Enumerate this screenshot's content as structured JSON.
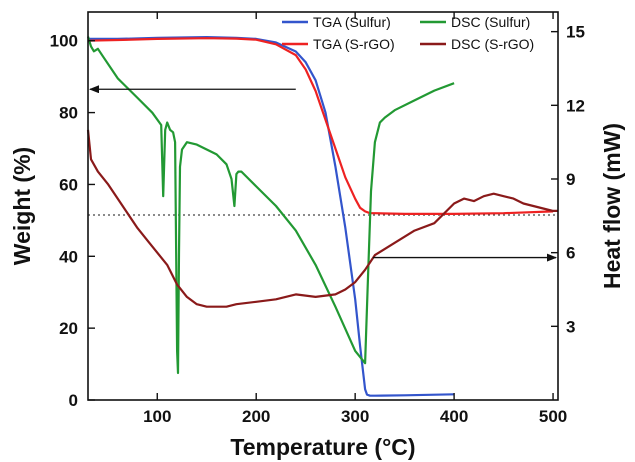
{
  "chart_data": {
    "type": "line",
    "xlabel": "Temperature (°C)",
    "ylabel_left": "Weight (%)",
    "ylabel_right": "Heat flow (mW)",
    "xlim": [
      30,
      505
    ],
    "ylim_left": [
      0,
      108
    ],
    "ylim_right": [
      0,
      15.8
    ],
    "x_ticks": [
      100,
      200,
      300,
      400,
      500
    ],
    "y_left_ticks": [
      0,
      20,
      40,
      60,
      80,
      100
    ],
    "y_right_ticks": [
      3,
      6,
      9,
      12,
      15
    ],
    "legend_position": "top-right",
    "reference_line": {
      "axis": "left",
      "y": 51.5,
      "style": "dotted"
    },
    "arrows": [
      {
        "points_to": "left-axis",
        "series": "TGA",
        "x_from": 240,
        "x_to": 30,
        "y_left": 86.5
      },
      {
        "points_to": "right-axis",
        "series": "DSC",
        "x_from": 318,
        "x_to": 505,
        "y_right": 5.8
      }
    ],
    "series": [
      {
        "name": "TGA (Sulfur)",
        "axis": "left",
        "color": "#3355cc",
        "x": [
          30,
          60,
          100,
          150,
          180,
          200,
          220,
          240,
          250,
          260,
          270,
          280,
          290,
          300,
          305,
          310,
          312,
          315,
          320,
          350,
          400
        ],
        "y": [
          100.5,
          100.5,
          100.8,
          101.0,
          100.8,
          100.5,
          99.5,
          97,
          94,
          89,
          80,
          65,
          48,
          28,
          15,
          3,
          1.5,
          1.2,
          1.2,
          1.3,
          1.6
        ]
      },
      {
        "name": "TGA (S-rGO)",
        "axis": "left",
        "color": "#ee2222",
        "x": [
          30,
          60,
          100,
          150,
          180,
          200,
          220,
          240,
          250,
          260,
          270,
          280,
          290,
          300,
          305,
          310,
          315,
          320,
          350,
          400,
          450,
          500
        ],
        "y": [
          100,
          100.2,
          100.5,
          100.7,
          100.6,
          100.3,
          99,
          96,
          92,
          86,
          78,
          70,
          62,
          56,
          53.5,
          52.5,
          52,
          52,
          51.8,
          51.8,
          52,
          52.5
        ]
      },
      {
        "name": "DSC (Sulfur)",
        "axis": "right",
        "color": "#229933",
        "x": [
          30,
          33,
          36,
          40,
          45,
          60,
          80,
          95,
          104,
          106,
          108,
          110,
          113,
          116,
          118,
          120,
          121,
          122,
          123,
          125,
          130,
          140,
          150,
          160,
          170,
          175,
          178,
          180,
          182,
          185,
          190,
          200,
          220,
          240,
          260,
          280,
          300,
          310,
          313,
          316,
          320,
          325,
          330,
          340,
          360,
          380,
          400
        ],
        "y": [
          14.8,
          14.4,
          14.2,
          14.3,
          14.0,
          13.1,
          12.3,
          11.7,
          11.2,
          8.3,
          11.0,
          11.3,
          11.0,
          10.9,
          10.5,
          2.0,
          1.1,
          6.0,
          9.5,
          10.2,
          10.5,
          10.4,
          10.2,
          10.0,
          9.6,
          9.0,
          7.9,
          9.2,
          9.3,
          9.3,
          9.1,
          8.7,
          7.9,
          6.9,
          5.5,
          3.8,
          2.0,
          1.5,
          5.0,
          8.5,
          10.5,
          11.3,
          11.5,
          11.8,
          12.2,
          12.6,
          12.9
        ]
      },
      {
        "name": "DSC (S-rGO)",
        "axis": "right",
        "color": "#8a1a1a",
        "x": [
          30,
          33,
          40,
          50,
          60,
          70,
          80,
          90,
          100,
          110,
          120,
          130,
          140,
          150,
          160,
          170,
          180,
          200,
          220,
          240,
          260,
          280,
          290,
          300,
          310,
          320,
          340,
          360,
          380,
          400,
          410,
          420,
          430,
          440,
          450,
          460,
          470,
          480,
          490,
          500,
          505
        ],
        "y": [
          11.0,
          9.8,
          9.3,
          8.8,
          8.2,
          7.6,
          7.0,
          6.5,
          6.0,
          5.5,
          4.7,
          4.2,
          3.9,
          3.8,
          3.8,
          3.8,
          3.9,
          4.0,
          4.1,
          4.3,
          4.2,
          4.3,
          4.5,
          4.8,
          5.3,
          5.9,
          6.4,
          6.9,
          7.2,
          8.0,
          8.2,
          8.1,
          8.3,
          8.4,
          8.3,
          8.2,
          8.0,
          7.9,
          7.8,
          7.7,
          7.7
        ]
      }
    ]
  }
}
